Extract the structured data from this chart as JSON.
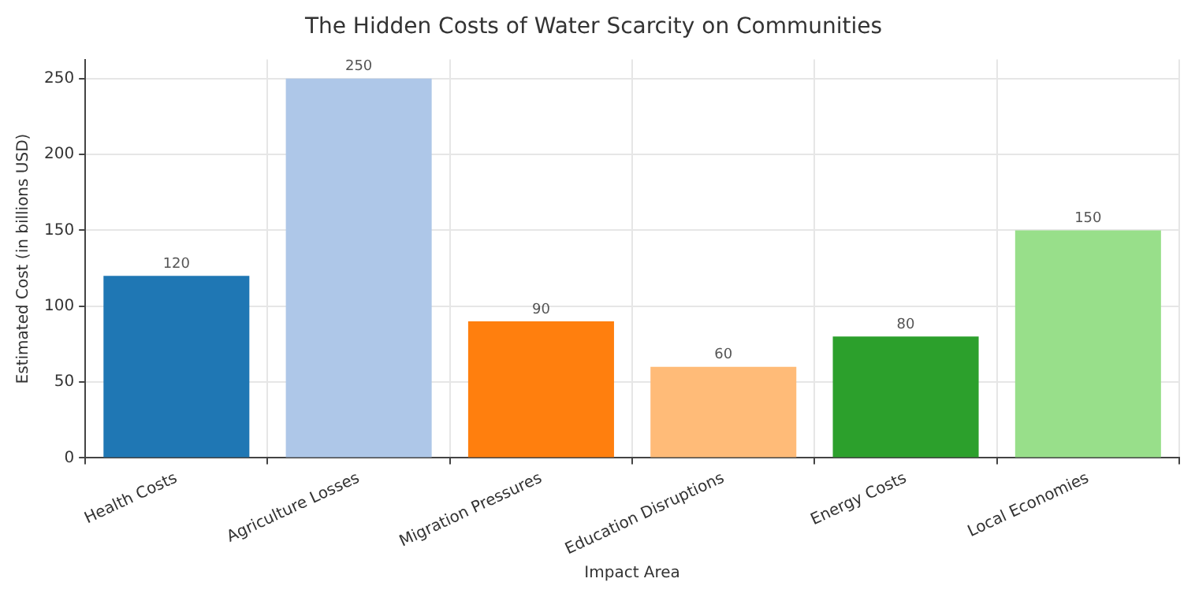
{
  "chart_data": {
    "type": "bar",
    "title": "The Hidden Costs of Water Scarcity on Communities",
    "xlabel": "Impact Area",
    "ylabel": "Estimated Cost (in billions USD)",
    "categories": [
      "Health Costs",
      "Agriculture Losses",
      "Migration Pressures",
      "Education Disruptions",
      "Energy Costs",
      "Local Economies"
    ],
    "values": [
      120,
      250,
      90,
      60,
      80,
      150
    ],
    "colors": [
      "#1f77b4",
      "#aec7e8",
      "#ff7f0e",
      "#ffbb78",
      "#2ca02c",
      "#98df8a"
    ],
    "ylim": [
      0,
      262.5
    ],
    "yticks": [
      0,
      50,
      100,
      150,
      200,
      250
    ],
    "grid": true,
    "data_labels": true
  }
}
